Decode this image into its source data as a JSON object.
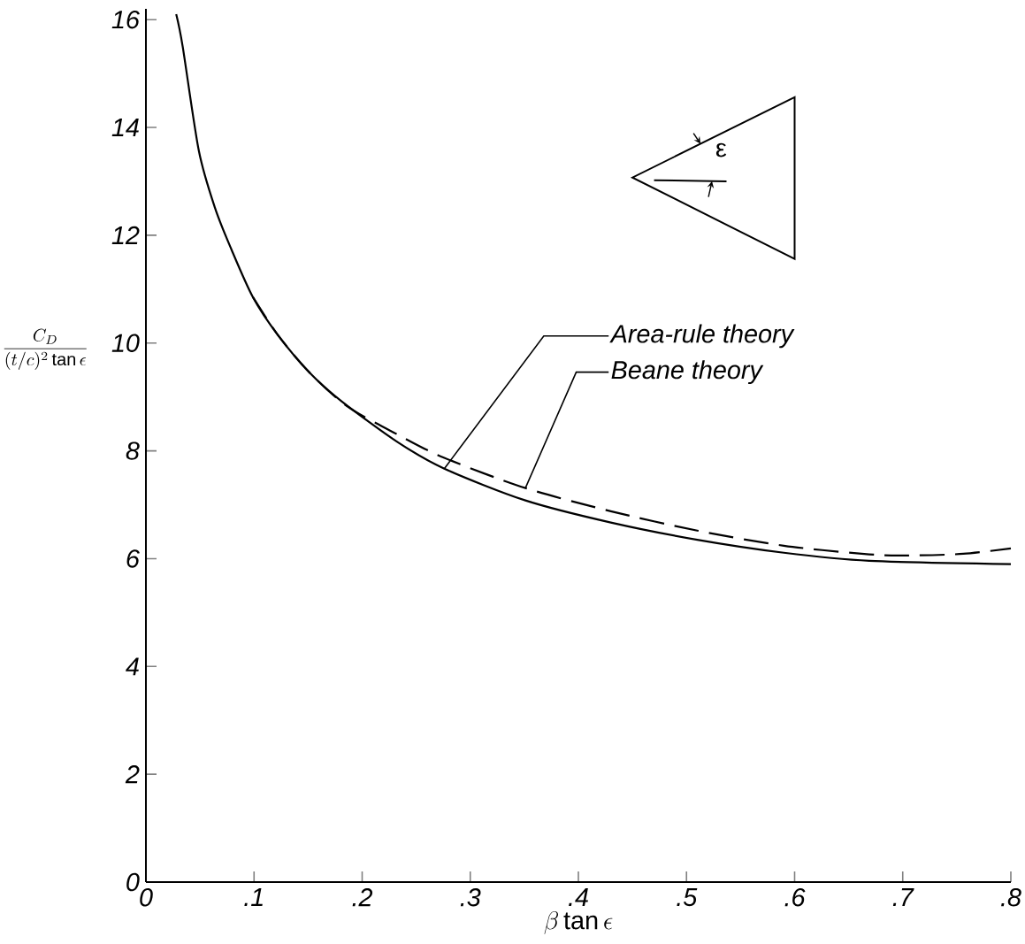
{
  "chart_data": {
    "type": "line",
    "xlabel": "\\beta\\tan\\epsilon",
    "ylabel": "\\frac{C_D}{(t/c)^2\\tan\\epsilon}",
    "annotations": [
      {
        "text": "Area-rule theory",
        "x": 0.276,
        "y": 7.67
      },
      {
        "text": "Beane theory",
        "x": 0.351,
        "y": 7.31
      },
      "ε"
    ],
    "xlim": [
      0,
      0.8
    ],
    "ylim": [
      0,
      16.2
    ],
    "xticks": [
      0,
      {
        "value": 0.1,
        "label": ".1"
      },
      {
        "value": 0.2,
        "label": ".2"
      },
      {
        "value": 0.3,
        "label": ".3"
      },
      {
        "value": 0.4,
        "label": ".4"
      },
      {
        "value": 0.5,
        "label": ".5"
      },
      {
        "value": 0.6,
        "label": ".6"
      },
      {
        "value": 0.7,
        "label": ".7"
      },
      {
        "value": 0.8,
        "label": ".8"
      }
    ],
    "yticks": [
      0,
      2,
      4,
      6,
      8,
      10,
      12,
      14,
      16
    ],
    "grid": false,
    "series": [
      {
        "color": "#000000",
        "line_style": "solid",
        "x": [
          0.028,
          0.034,
          0.049,
          0.064,
          0.079,
          0.099,
          0.122,
          0.151,
          0.181,
          0.233,
          0.276,
          0.351,
          0.43,
          0.51,
          0.59,
          0.669,
          0.8
        ],
        "values": [
          16.1,
          15.5,
          13.56,
          12.5,
          11.74,
          10.85,
          10.15,
          9.46,
          8.92,
          8.16,
          7.67,
          7.08,
          6.67,
          6.35,
          6.11,
          5.96,
          5.9
        ]
      },
      {
        "color": "#000000",
        "line_style": "dashed",
        "x": [
          0.099,
          0.122,
          0.151,
          0.186,
          0.233,
          0.276,
          0.351,
          0.43,
          0.51,
          0.59,
          0.669,
          0.708,
          0.756,
          0.8
        ],
        "values": [
          10.85,
          10.15,
          9.46,
          8.83,
          8.3,
          7.87,
          7.31,
          6.88,
          6.52,
          6.24,
          6.08,
          6.06,
          6.09,
          6.19
        ]
      }
    ]
  }
}
